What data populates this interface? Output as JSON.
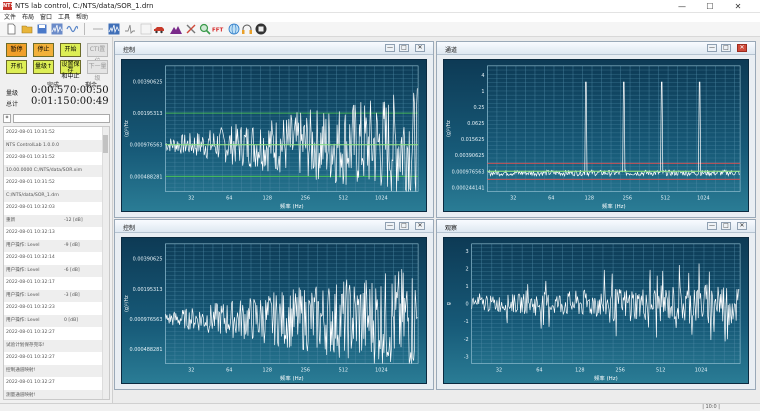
{
  "window": {
    "title": "NTS lab control, C:/NTS/data/SOR_1.drn",
    "minimize": "—",
    "maximize": "☐",
    "close": "✕"
  },
  "menu": [
    "文件",
    "布局",
    "窗口",
    "工具",
    "帮助"
  ],
  "toolbar_icons": [
    {
      "name": "new-file-icon",
      "color": "#ffffff"
    },
    {
      "name": "open-folder-icon",
      "color": "#e8b53a"
    },
    {
      "name": "save-icon",
      "color": "#4a79c9"
    },
    {
      "name": "spectrum-icon",
      "color": "#6a8bc9"
    },
    {
      "name": "sine-wave-icon",
      "color": "#5a86c8"
    },
    {
      "name": "divider-icon",
      "color": "#bbbbbb"
    },
    {
      "name": "line-tool-icon",
      "color": "#999999"
    },
    {
      "name": "random-vibration-icon",
      "color": "#3f6fb8"
    },
    {
      "name": "shock-icon",
      "color": "#888888"
    },
    {
      "name": "grid-icon",
      "color": "#cccccc"
    },
    {
      "name": "car-icon",
      "color": "#c83a2a"
    },
    {
      "name": "mountain-icon",
      "color": "#7a2a8a"
    },
    {
      "name": "tools-icon",
      "color": "#d04a3a"
    },
    {
      "name": "magnifier-icon",
      "color": "#3a9a4a"
    },
    {
      "name": "fft-icon",
      "color": "#d62a2a"
    },
    {
      "name": "globe-icon",
      "color": "#2a7ac8"
    },
    {
      "name": "headphones-icon",
      "color": "#e8a02a"
    },
    {
      "name": "stop-circle-icon",
      "color": "#333333"
    }
  ],
  "controls": {
    "row1": [
      {
        "label": "暂停",
        "bg": "#f0a02a",
        "disabled": false
      },
      {
        "label": "停止",
        "bg": "#f2b13a",
        "disabled": false
      },
      {
        "label": "开始",
        "bg": "#ddee55",
        "disabled": false
      },
      {
        "label": "CTI置位",
        "bg": "#e4e4e4",
        "disabled": true
      }
    ],
    "row2": [
      {
        "label": "开机",
        "bg": "#ddee55",
        "disabled": false
      },
      {
        "label": "量级↑",
        "bg": "#ddee55",
        "disabled": false
      },
      {
        "label": "设置保存\n和中止",
        "bg": "#ddee55",
        "disabled": false
      },
      {
        "label": "下一量级",
        "bg": "#e4e4e4",
        "disabled": true
      }
    ]
  },
  "timers": {
    "col_done": "完成",
    "col_remain": "剩余",
    "rows": [
      {
        "label": "量级",
        "done": "0:00:57",
        "remain": "0:00:50"
      },
      {
        "label": "总计",
        "done": "0:01:15",
        "remain": "0:00:49"
      }
    ]
  },
  "log_filter": {
    "value": "*"
  },
  "log": [
    [
      "2022-08-01 10:31:52",
      ""
    ],
    [
      "NTS ControlLab 1.0.0.0",
      ""
    ],
    [
      "2022-08-01 10:31:52",
      ""
    ],
    [
      "10.00.0000 C:/NTS/data/SOR.xim",
      ""
    ],
    [
      "2022-08-01 10:31:52",
      ""
    ],
    [
      "C:/NTS/data/SOR_1.drn",
      ""
    ],
    [
      "2022-08-01 10:32:03",
      ""
    ],
    [
      "重新",
      "-12 [dB]"
    ],
    [
      "2022-08-01 10:32:13",
      ""
    ],
    [
      "用户操作: Level",
      "-9 [dB]"
    ],
    [
      "2022-08-01 10:32:14",
      ""
    ],
    [
      "用户操作: Level",
      "-6 [dB]"
    ],
    [
      "2022-08-01 10:32:17",
      ""
    ],
    [
      "用户操作: Level",
      "-3 [dB]"
    ],
    [
      "2022-08-01 10:32:23",
      ""
    ],
    [
      "用户操作: Level",
      "0 [dB]"
    ],
    [
      "2022-08-01 10:32:27",
      ""
    ],
    [
      "试验计划保存完毕!",
      ""
    ],
    [
      "2022-08-01 10:32:27",
      ""
    ],
    [
      "控制通道映射!",
      ""
    ],
    [
      "2022-08-01 10:32:27",
      ""
    ],
    [
      "测量通道映射!",
      ""
    ],
    [
      "2022-08-01 10:32:27",
      ""
    ]
  ],
  "panels": [
    {
      "title": "控制",
      "xlabel": "频率 (Hz)",
      "ylabel": "(g)²/Hz",
      "minimize": "—",
      "restore": "□",
      "close": "✕"
    },
    {
      "title": "通道",
      "xlabel": "频率 (Hz)",
      "ylabel": "(g)²/Hz",
      "minimize": "—",
      "restore": "□",
      "close": "✕"
    },
    {
      "title": "控制",
      "xlabel": "频率 (Hz)",
      "ylabel": "(g)²/Hz",
      "minimize": "—",
      "restore": "□",
      "close": "✕"
    },
    {
      "title": "观察",
      "xlabel": "频率 (Hz)",
      "ylabel": "g",
      "minimize": "—",
      "restore": "□",
      "close": "✕"
    }
  ],
  "chart_data": [
    {
      "type": "line",
      "title": "控制",
      "x_ticks": [
        "32",
        "64",
        "128",
        "256",
        "512",
        "1024"
      ],
      "xlim": [
        20,
        2000
      ],
      "log_x": true,
      "y_ticks": [
        "0.00390625",
        "0.00195313",
        "0.000976563",
        "0.000488281"
      ],
      "ylim": [
        0.00035,
        0.0055
      ],
      "log_y": true,
      "limit_lines": [
        0.00195313,
        0.000976563,
        0.000488281
      ],
      "series": [
        {
          "color": "#ffffff"
        },
        {
          "color": "#7fe07f"
        }
      ]
    },
    {
      "type": "line",
      "title": "通道",
      "x_ticks": [
        "32",
        "64",
        "128",
        "256",
        "512",
        "1024"
      ],
      "xlim": [
        20,
        2000
      ],
      "log_x": true,
      "y_ticks": [
        "4",
        "1",
        "0.25",
        "0.0625",
        "0.015625",
        "0.00390625",
        "0.000976563",
        "0.000244141"
      ],
      "ylim": [
        0.00017,
        9
      ],
      "log_y": true,
      "limit_lines": [
        0.00195313,
        0.000976563,
        0.000488281
      ],
      "peaks_hz": [
        120,
        240,
        480,
        960
      ],
      "series": [
        {
          "color": "#ffffff"
        },
        {
          "color": "#7fe07f"
        }
      ]
    },
    {
      "type": "line",
      "title": "控制",
      "x_ticks": [
        "32",
        "64",
        "128",
        "256",
        "512",
        "1024"
      ],
      "xlim": [
        20,
        2000
      ],
      "log_x": true,
      "y_ticks": [
        "0.00390625",
        "0.00195313",
        "0.000976563",
        "0.000488281"
      ],
      "ylim": [
        0.00035,
        0.0055
      ],
      "log_y": true,
      "series": [
        {
          "color": "#ffffff"
        }
      ]
    },
    {
      "type": "line",
      "title": "观察",
      "x_ticks": [
        "32",
        "64",
        "128",
        "256",
        "512",
        "1024"
      ],
      "xlim": [
        20,
        2000
      ],
      "log_x": true,
      "y_ticks": [
        "3",
        "2",
        "1",
        "0",
        "-1",
        "-2",
        "-3"
      ],
      "ylim": [
        -3.4,
        3.4
      ],
      "log_y": false,
      "series": [
        {
          "color": "#ffffff"
        }
      ]
    }
  ],
  "status": {
    "right": "| 10:0 |"
  }
}
